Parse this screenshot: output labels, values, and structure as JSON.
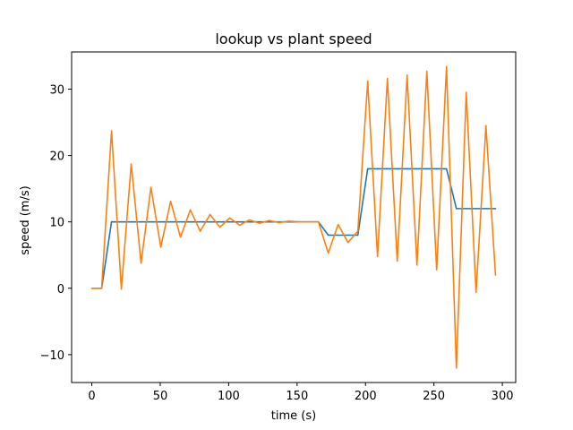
{
  "chart_data": {
    "type": "line",
    "title": "lookup vs plant speed",
    "xlabel": "time (s)",
    "ylabel": "speed (m/s)",
    "xlim": [
      -14.75,
      309.75
    ],
    "ylim": [
      -14.2,
      35.6
    ],
    "xticks": [
      0,
      50,
      100,
      150,
      200,
      250,
      300
    ],
    "yticks": [
      -10,
      0,
      10,
      20,
      30
    ],
    "ytick_labels": [
      "−10",
      "0",
      "10",
      "20",
      "30"
    ],
    "grid": false,
    "series": [
      {
        "color": "#1f77b4",
        "x": [
          0,
          7.2,
          14.4,
          21.6,
          28.8,
          36.0,
          43.2,
          50.4,
          57.6,
          64.8,
          72.0,
          79.2,
          86.4,
          93.6,
          100.8,
          108.0,
          115.2,
          122.4,
          129.6,
          136.8,
          144.0,
          151.2,
          158.4,
          165.6,
          172.8,
          180.0,
          187.2,
          194.4,
          201.6,
          208.8,
          216.0,
          223.2,
          230.4,
          237.6,
          244.8,
          252.0,
          259.2,
          266.4,
          273.6,
          280.8,
          288.0,
          295.0
        ],
        "y": [
          0,
          0,
          10,
          10,
          10,
          10,
          10,
          10,
          10,
          10,
          10,
          10,
          10,
          10,
          10,
          10,
          10,
          10,
          10,
          10,
          10,
          10,
          10,
          10,
          8,
          8,
          8,
          8,
          18,
          18,
          18,
          18,
          18,
          18,
          18,
          18,
          18,
          12,
          12,
          12,
          12,
          12
        ]
      },
      {
        "color": "#ff7f0e",
        "x": [
          0,
          7.2,
          14.4,
          21.6,
          28.8,
          36.0,
          43.2,
          50.4,
          57.6,
          64.8,
          72.0,
          79.2,
          86.4,
          93.6,
          100.8,
          108.0,
          115.2,
          122.4,
          129.6,
          136.8,
          144.0,
          151.2,
          158.4,
          165.6,
          172.8,
          180.0,
          187.2,
          194.4,
          201.6,
          208.8,
          216.0,
          223.2,
          230.4,
          237.6,
          244.8,
          252.0,
          259.2,
          266.4,
          273.6,
          280.8,
          288.0,
          295.0
        ],
        "y": [
          0,
          0,
          23.7,
          -0.1,
          18.7,
          3.8,
          15.2,
          6.2,
          13.1,
          7.7,
          11.8,
          8.6,
          11.1,
          9.2,
          10.6,
          9.5,
          10.3,
          9.8,
          10.2,
          9.9,
          10.1,
          10.0,
          10.0,
          10.0,
          5.3,
          9.6,
          6.9,
          8.6,
          31.2,
          4.8,
          31.6,
          4.1,
          32.1,
          3.5,
          32.7,
          2.8,
          33.4,
          -12.0,
          29.5,
          -0.6,
          24.5,
          2.0
        ]
      }
    ]
  }
}
